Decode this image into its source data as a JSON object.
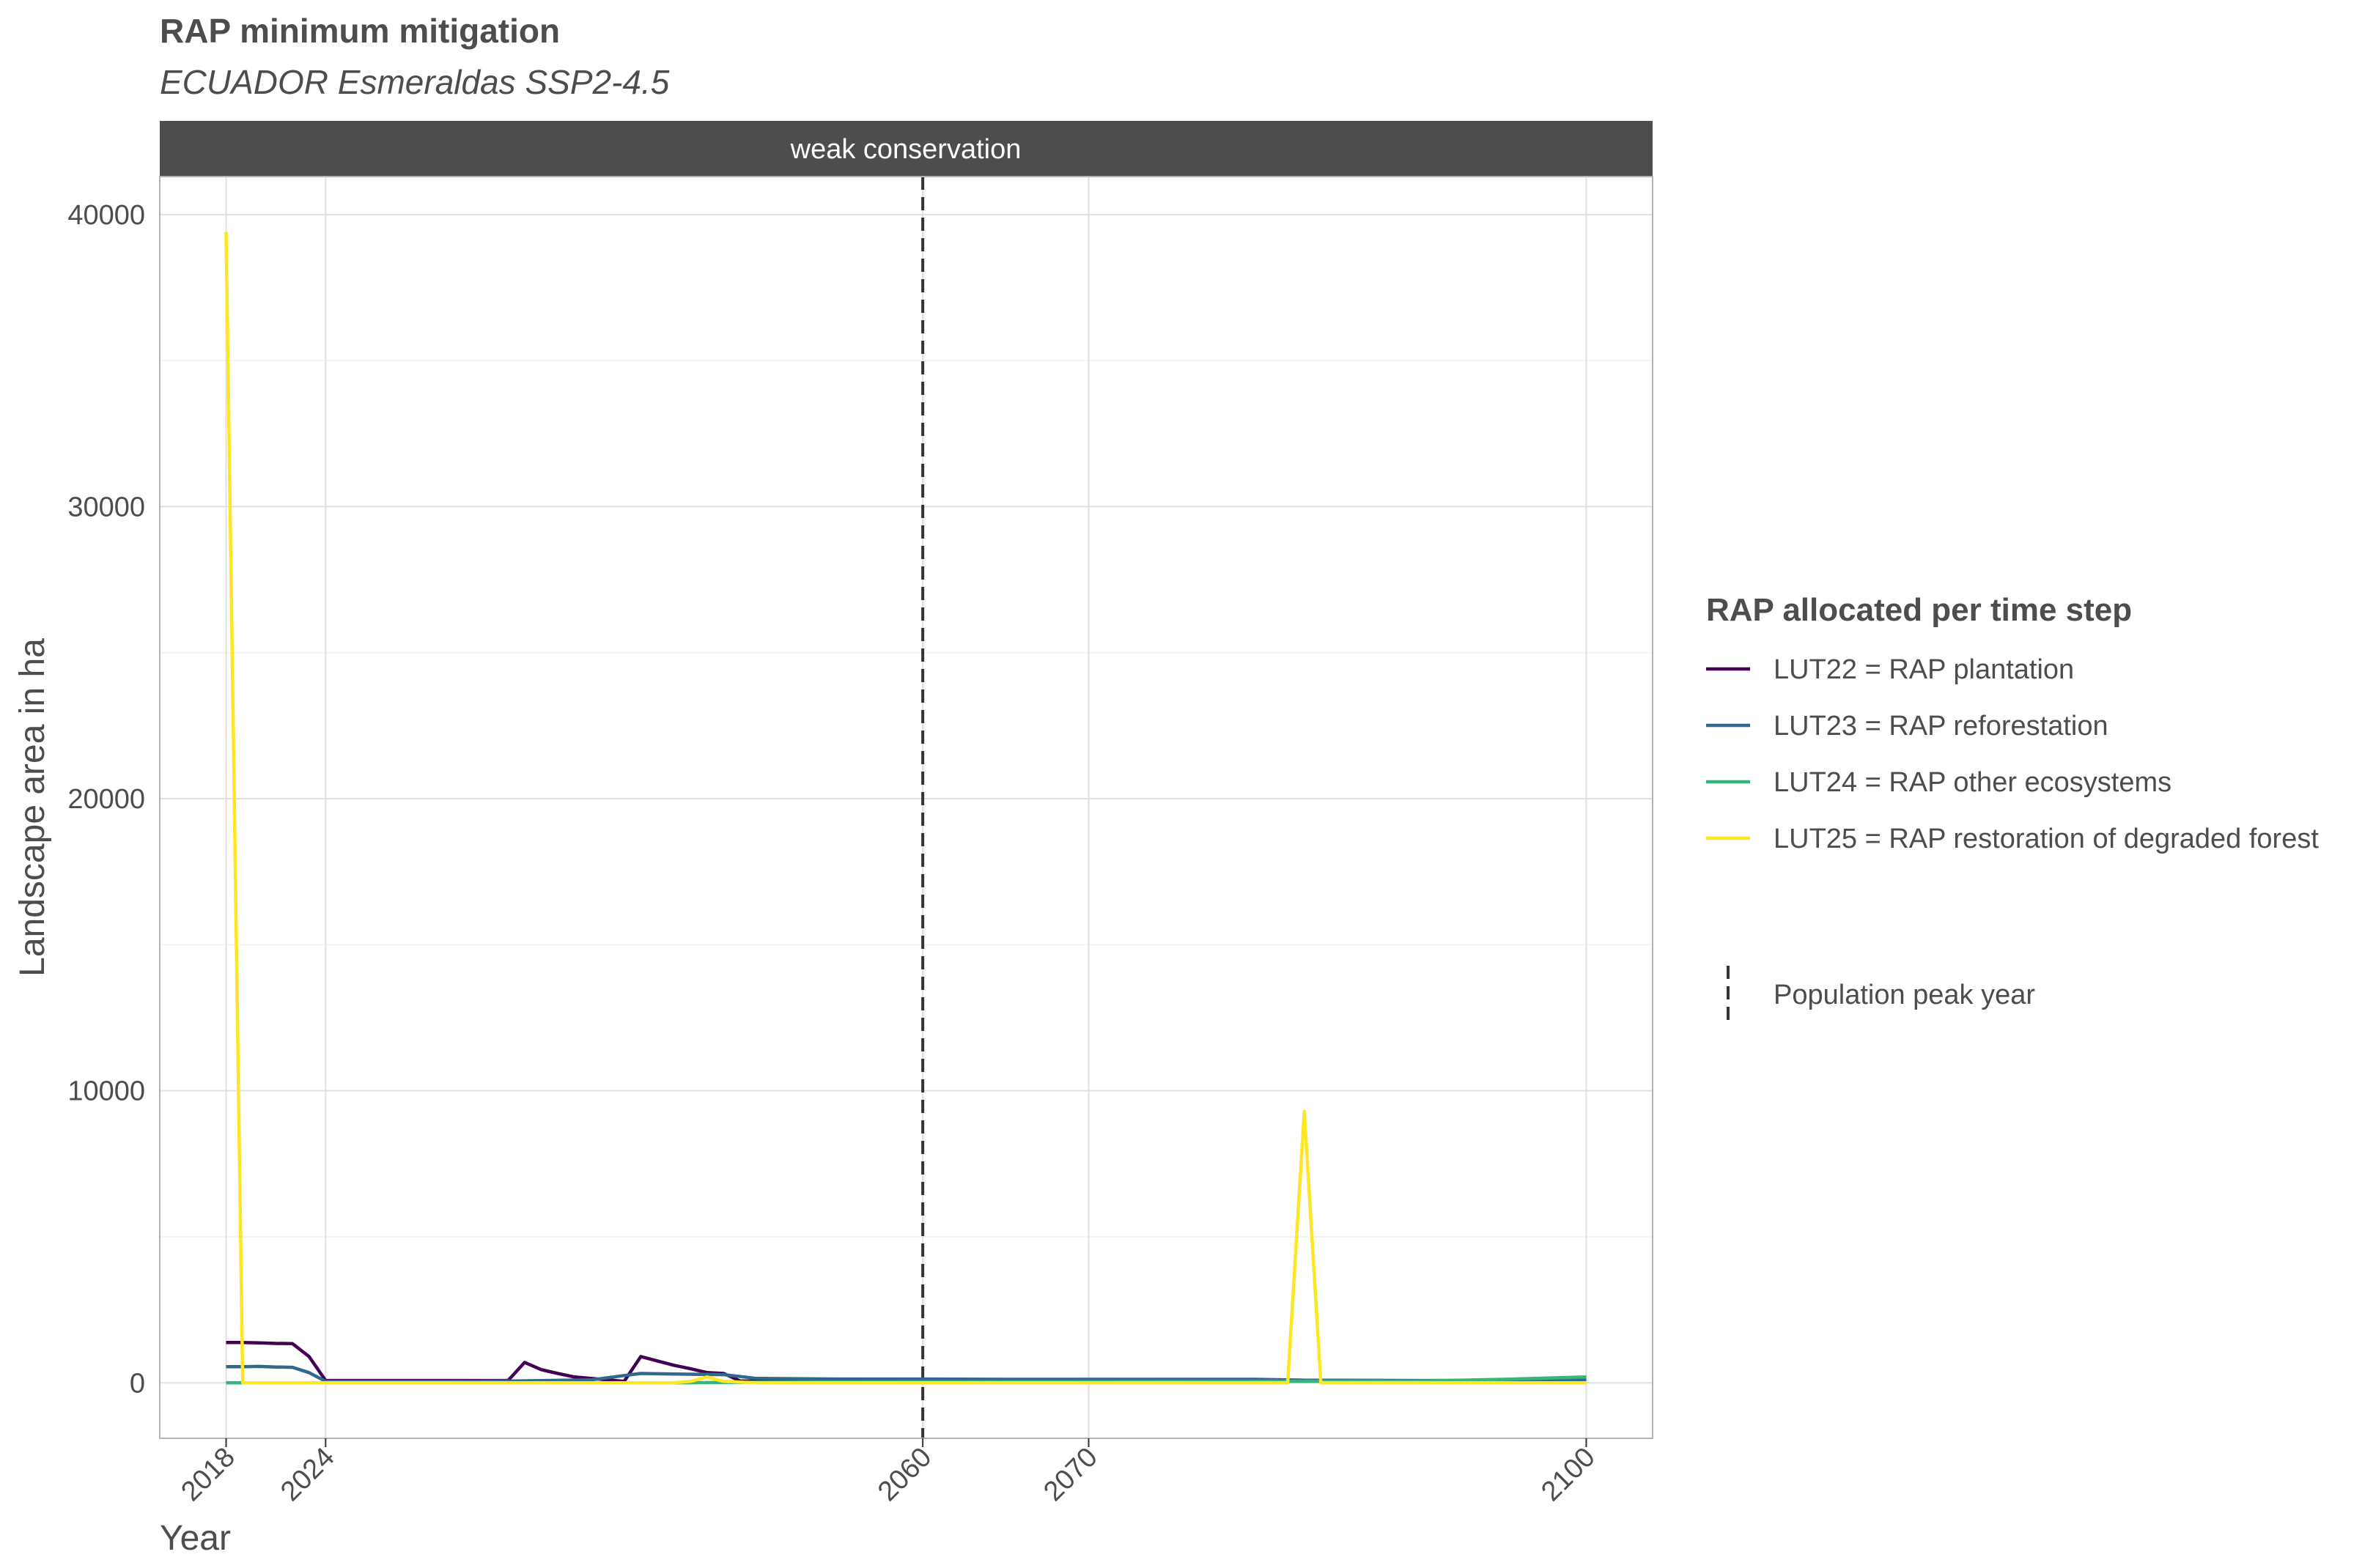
{
  "chart_data": {
    "type": "line",
    "title": "RAP minimum mitigation",
    "subtitle": "ECUADOR Esmeraldas SSP2-4.5",
    "facet_label": "weak conservation",
    "xlabel": "Year",
    "ylabel": "Landscape area in ha",
    "xlim": [
      2014,
      2104
    ],
    "ylim": [
      -1900,
      41300
    ],
    "x_ticks": [
      2018,
      2024,
      2060,
      2070,
      2100
    ],
    "y_ticks": [
      0,
      10000,
      20000,
      30000,
      40000
    ],
    "grid": true,
    "legend_position": "right",
    "legend_title": "RAP allocated per time step",
    "reference_line": {
      "x": 2060,
      "label": "Population peak year",
      "style": "dashed",
      "color": "#333333"
    },
    "series": [
      {
        "name": "LUT22 = RAP plantation",
        "color": "#440154",
        "x": [
          2018,
          2019,
          2020,
          2021,
          2022,
          2023,
          2024,
          2030,
          2035,
          2036,
          2037,
          2038,
          2039,
          2040,
          2041,
          2042,
          2043,
          2044,
          2045,
          2046,
          2047,
          2048,
          2049,
          2050,
          2055,
          2060,
          2070,
          2080,
          2085,
          2090,
          2100
        ],
        "y": [
          1380,
          1380,
          1370,
          1350,
          1340,
          900,
          80,
          80,
          80,
          700,
          450,
          320,
          200,
          150,
          100,
          50,
          900,
          750,
          600,
          480,
          350,
          320,
          60,
          60,
          60,
          60,
          60,
          60,
          60,
          60,
          60
        ]
      },
      {
        "name": "LUT23 = RAP reforestation",
        "color": "#31688e",
        "x": [
          2018,
          2019,
          2020,
          2021,
          2022,
          2023,
          2024,
          2030,
          2035,
          2040,
          2042,
          2043,
          2045,
          2048,
          2050,
          2055,
          2060,
          2065,
          2070,
          2080,
          2083,
          2085,
          2090,
          2100
        ],
        "y": [
          550,
          550,
          560,
          540,
          530,
          350,
          50,
          50,
          60,
          100,
          250,
          320,
          300,
          280,
          150,
          130,
          130,
          120,
          120,
          120,
          90,
          90,
          80,
          90
        ]
      },
      {
        "name": "LUT24 = RAP other ecosystems",
        "color": "#35b779",
        "x": [
          2018,
          2020,
          2024,
          2030,
          2040,
          2045,
          2050,
          2060,
          2070,
          2080,
          2090,
          2095,
          2100
        ],
        "y": [
          0,
          0,
          0,
          0,
          0,
          0,
          20,
          30,
          40,
          50,
          60,
          120,
          200
        ]
      },
      {
        "name": "LUT25 = RAP restoration of degraded forest",
        "color": "#fde725",
        "x": [
          2018,
          2019,
          2020,
          2024,
          2030,
          2040,
          2045,
          2046,
          2047,
          2048,
          2050,
          2060,
          2070,
          2080,
          2082,
          2083,
          2084,
          2085,
          2090,
          2100
        ],
        "y": [
          39400,
          0,
          0,
          0,
          0,
          0,
          0,
          50,
          200,
          50,
          0,
          0,
          0,
          0,
          0,
          9300,
          0,
          0,
          0,
          0
        ]
      }
    ]
  },
  "colors": {
    "strip_bg": "#4d4d4d",
    "grid": "#e0e0e0",
    "panel_border": "#b3b3b3",
    "text": "#4d4d4d"
  }
}
